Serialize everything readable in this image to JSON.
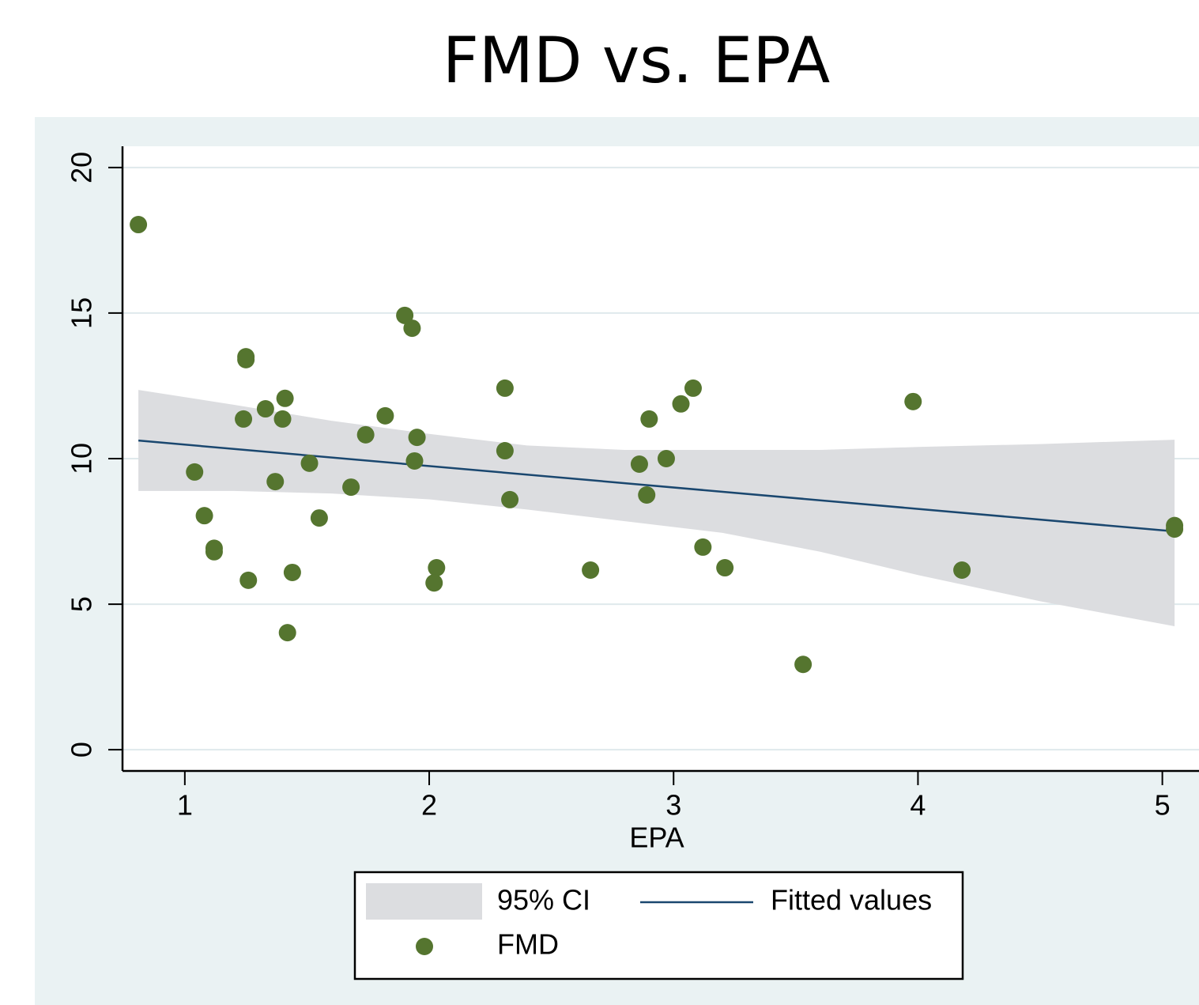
{
  "chart_data": {
    "type": "scatter",
    "title": "FMD vs. EPA",
    "x_label": "EPA",
    "xlim": [
      0.745,
      5.15
    ],
    "ylim": [
      -0.73,
      20.73
    ],
    "xticks": [
      1,
      2,
      3,
      4,
      5
    ],
    "yticks": [
      0,
      5,
      10,
      15,
      20
    ],
    "grid": true,
    "series": [
      {
        "name": "95% CI",
        "type": "area",
        "color": "#dcdde0",
        "x": [
          0.81,
          1.2,
          1.6,
          2.0,
          2.4,
          2.8,
          3.2,
          3.6,
          4.0,
          4.5,
          5.05
        ],
        "upper": [
          12.36,
          11.85,
          11.3,
          10.85,
          10.45,
          10.3,
          10.3,
          10.3,
          10.4,
          10.5,
          10.65
        ],
        "lower": [
          8.89,
          8.89,
          8.8,
          8.6,
          8.25,
          7.85,
          7.45,
          6.8,
          6.0,
          5.1,
          4.24
        ]
      },
      {
        "name": "Fitted values",
        "type": "line",
        "color": "#1a476f",
        "x": [
          0.81,
          5.05
        ],
        "values": [
          10.62,
          7.5
        ]
      },
      {
        "name": "FMD",
        "type": "scatter",
        "color": "#55752f",
        "x": [
          0.81,
          1.04,
          1.08,
          1.12,
          1.12,
          1.25,
          1.25,
          1.24,
          1.26,
          1.33,
          1.37,
          1.41,
          1.4,
          1.42,
          1.44,
          1.51,
          1.55,
          1.68,
          1.74,
          1.82,
          1.9,
          1.93,
          1.95,
          1.94,
          2.03,
          2.02,
          2.31,
          2.31,
          2.33,
          2.66,
          2.86,
          2.89,
          2.9,
          2.97,
          3.03,
          3.08,
          3.12,
          3.21,
          3.53,
          3.98,
          4.18,
          5.05,
          5.05
        ],
        "values": [
          18.04,
          9.54,
          8.04,
          6.92,
          6.8,
          13.5,
          13.4,
          11.36,
          5.82,
          11.71,
          9.21,
          12.07,
          11.36,
          4.02,
          6.09,
          9.84,
          7.96,
          9.02,
          10.82,
          11.47,
          14.92,
          14.48,
          10.73,
          9.92,
          6.25,
          5.73,
          12.42,
          10.27,
          8.59,
          6.17,
          9.81,
          8.75,
          11.36,
          10.0,
          11.88,
          12.42,
          6.96,
          6.25,
          2.93,
          11.96,
          6.17,
          7.7,
          7.58
        ]
      }
    ]
  }
}
